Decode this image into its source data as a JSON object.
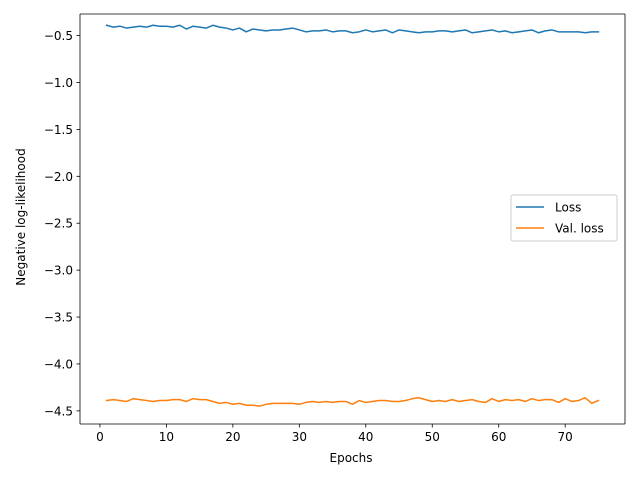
{
  "chart_data": {
    "type": "line",
    "title": "",
    "xlabel": "Epochs",
    "ylabel": "Negative log-likelihood",
    "xlim": [
      -3,
      79
    ],
    "ylim": [
      -4.64,
      -0.27
    ],
    "xticks": [
      0,
      10,
      20,
      30,
      40,
      50,
      60,
      70
    ],
    "yticks": [
      -4.5,
      -4.0,
      -3.5,
      -3.0,
      -2.5,
      -2.0,
      -1.5,
      -1.0,
      -0.5
    ],
    "xtick_labels": [
      "0",
      "10",
      "20",
      "30",
      "40",
      "50",
      "60",
      "70"
    ],
    "ytick_labels": [
      "−4.5",
      "−4.0",
      "−3.5",
      "−3.0",
      "−2.5",
      "−2.0",
      "−1.5",
      "−1.0",
      "−0.5"
    ],
    "grid": false,
    "legend_position": "center-right",
    "x": [
      1,
      2,
      3,
      4,
      5,
      6,
      7,
      8,
      9,
      10,
      11,
      12,
      13,
      14,
      15,
      16,
      17,
      18,
      19,
      20,
      21,
      22,
      23,
      24,
      25,
      26,
      27,
      28,
      29,
      30,
      31,
      32,
      33,
      34,
      35,
      36,
      37,
      38,
      39,
      40,
      41,
      42,
      43,
      44,
      45,
      46,
      47,
      48,
      49,
      50,
      51,
      52,
      53,
      54,
      55,
      56,
      57,
      58,
      59,
      60,
      61,
      62,
      63,
      64,
      65,
      66,
      67,
      68,
      69,
      70,
      71,
      72,
      73,
      74,
      75
    ],
    "series": [
      {
        "name": "Loss",
        "color": "#1f77b4",
        "values": [
          -0.39,
          -0.41,
          -0.4,
          -0.42,
          -0.41,
          -0.4,
          -0.41,
          -0.39,
          -0.4,
          -0.4,
          -0.41,
          -0.39,
          -0.43,
          -0.4,
          -0.41,
          -0.42,
          -0.39,
          -0.41,
          -0.42,
          -0.44,
          -0.42,
          -0.46,
          -0.43,
          -0.44,
          -0.45,
          -0.44,
          -0.44,
          -0.43,
          -0.42,
          -0.44,
          -0.46,
          -0.45,
          -0.45,
          -0.44,
          -0.46,
          -0.45,
          -0.45,
          -0.47,
          -0.46,
          -0.44,
          -0.46,
          -0.45,
          -0.44,
          -0.47,
          -0.44,
          -0.45,
          -0.46,
          -0.47,
          -0.46,
          -0.46,
          -0.45,
          -0.45,
          -0.46,
          -0.45,
          -0.44,
          -0.47,
          -0.46,
          -0.45,
          -0.44,
          -0.46,
          -0.45,
          -0.47,
          -0.46,
          -0.45,
          -0.44,
          -0.47,
          -0.45,
          -0.44,
          -0.46,
          -0.46,
          -0.46,
          -0.46,
          -0.47,
          -0.46,
          -0.46
        ]
      },
      {
        "name": "Val. loss",
        "color": "#ff7f0e",
        "values": [
          -4.39,
          -4.38,
          -4.39,
          -4.4,
          -4.37,
          -4.38,
          -4.39,
          -4.4,
          -4.39,
          -4.39,
          -4.38,
          -4.38,
          -4.4,
          -4.37,
          -4.38,
          -4.38,
          -4.4,
          -4.42,
          -4.41,
          -4.43,
          -4.42,
          -4.44,
          -4.44,
          -4.45,
          -4.43,
          -4.42,
          -4.42,
          -4.42,
          -4.42,
          -4.43,
          -4.41,
          -4.4,
          -4.41,
          -4.4,
          -4.41,
          -4.4,
          -4.4,
          -4.43,
          -4.39,
          -4.41,
          -4.4,
          -4.39,
          -4.39,
          -4.4,
          -4.4,
          -4.39,
          -4.37,
          -4.36,
          -4.38,
          -4.4,
          -4.39,
          -4.4,
          -4.38,
          -4.4,
          -4.39,
          -4.38,
          -4.4,
          -4.41,
          -4.37,
          -4.4,
          -4.38,
          -4.39,
          -4.38,
          -4.4,
          -4.37,
          -4.39,
          -4.38,
          -4.38,
          -4.41,
          -4.37,
          -4.4,
          -4.39,
          -4.36,
          -4.42,
          -4.39
        ]
      }
    ]
  }
}
